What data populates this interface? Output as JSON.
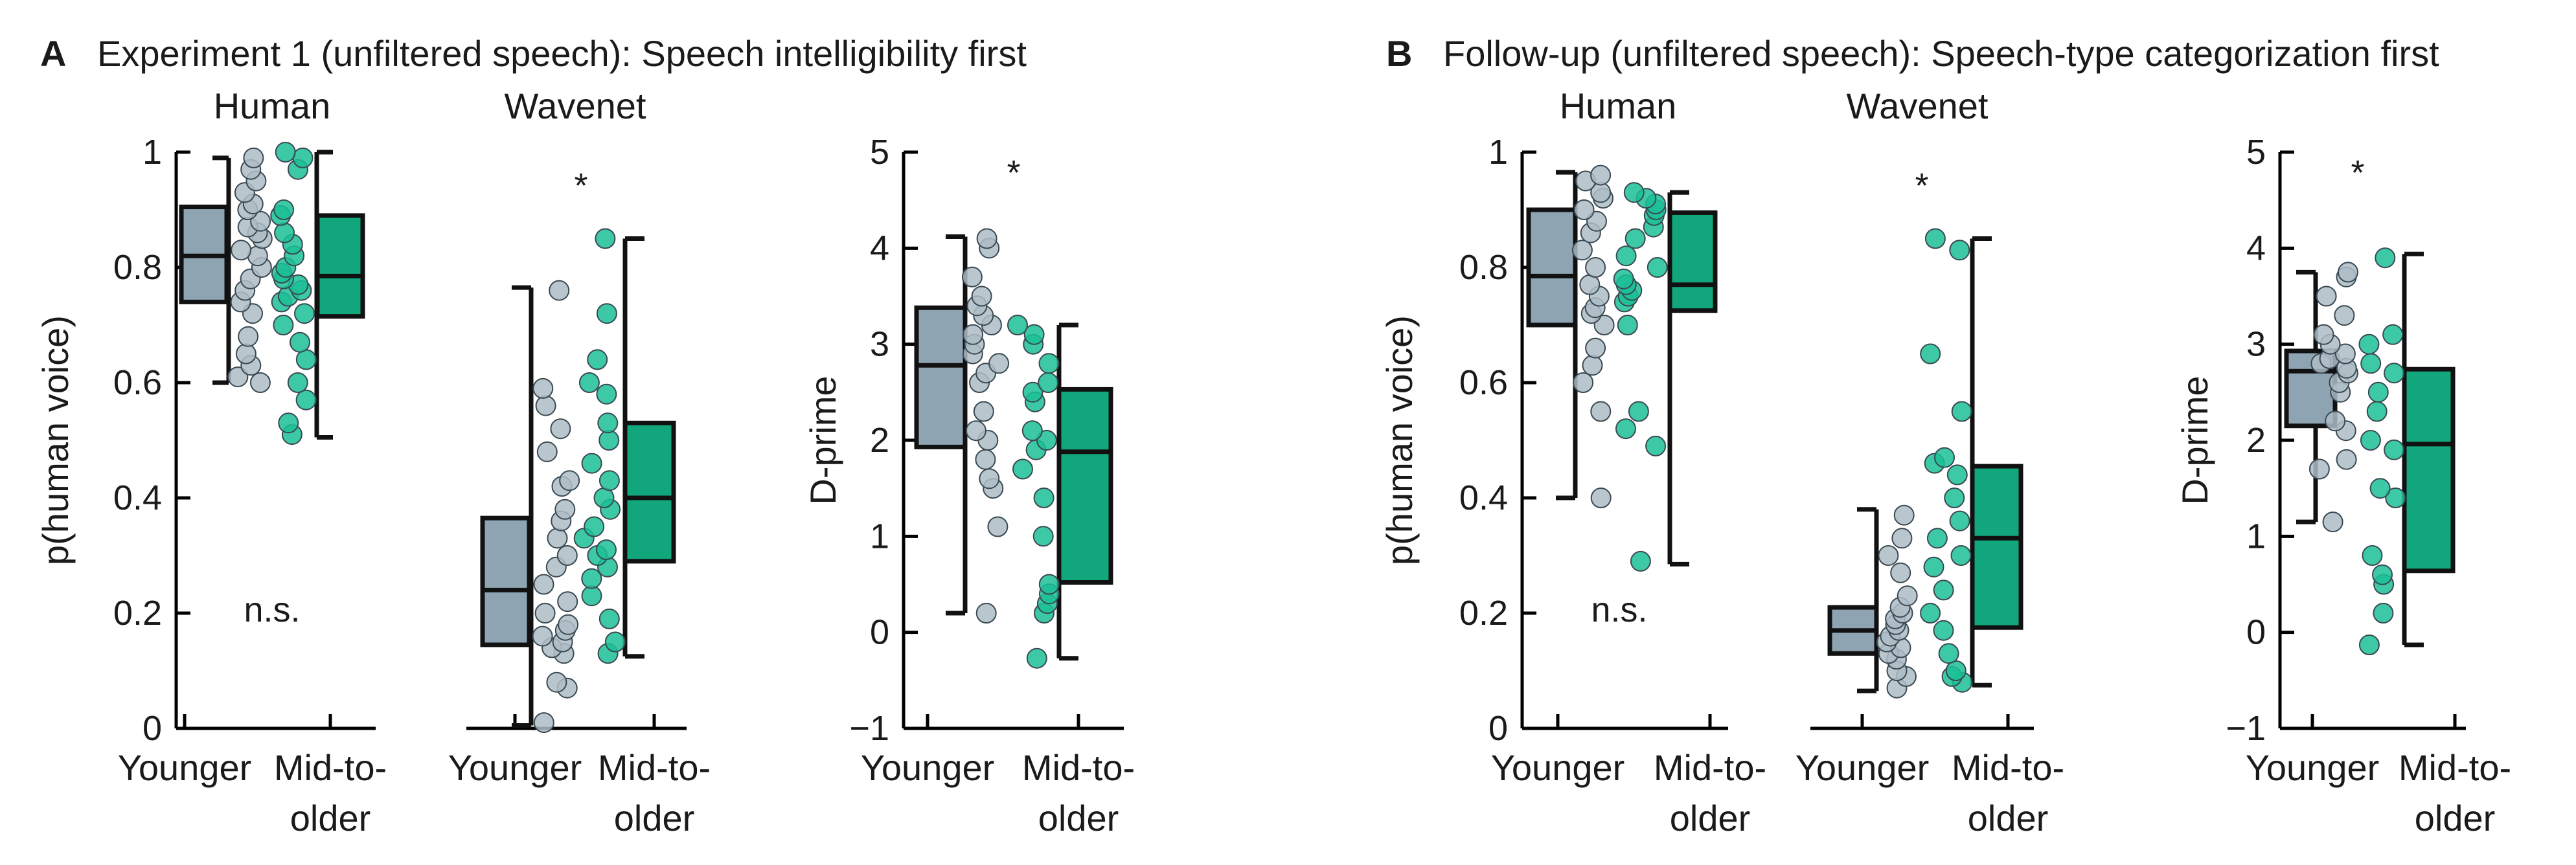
{
  "colors": {
    "younger": "#8ea4b3",
    "older": "#12a67d",
    "younger_dot": "#aebcc6",
    "older_dot": "#1bbf95",
    "box_edge": "#111111"
  },
  "panels": [
    {
      "letter": "A",
      "title": "Experiment 1 (unfiltered speech): Speech intelligibility first",
      "group_titles": [
        "Human",
        "Wavenet"
      ]
    },
    {
      "letter": "B",
      "title": "Follow-up (unfiltered speech): Speech-type categorization first",
      "group_titles": [
        "Human",
        "Wavenet"
      ]
    }
  ],
  "chart_data": [
    {
      "id": "A-human",
      "type": "box",
      "ylabel": "p(human voice)",
      "ylim": [
        0,
        1
      ],
      "yticks": [
        "0",
        "0.2",
        "0.4",
        "0.6",
        "0.8",
        "1"
      ],
      "categories": [
        [
          "Younger"
        ],
        [
          "Mid-to-",
          "older"
        ]
      ],
      "annotation": "n.s.",
      "boxes": [
        {
          "q1": 0.74,
          "median": 0.82,
          "q3": 0.905,
          "wlo": 0.6,
          "whi": 0.99,
          "points": [
            0.6,
            0.61,
            0.63,
            0.65,
            0.68,
            0.72,
            0.74,
            0.76,
            0.78,
            0.8,
            0.82,
            0.83,
            0.85,
            0.86,
            0.87,
            0.88,
            0.9,
            0.91,
            0.93,
            0.95,
            0.97,
            0.99
          ]
        },
        {
          "q1": 0.715,
          "median": 0.785,
          "q3": 0.89,
          "wlo": 0.505,
          "whi": 1.0,
          "points": [
            0.51,
            0.53,
            0.57,
            0.6,
            0.64,
            0.67,
            0.7,
            0.72,
            0.74,
            0.75,
            0.76,
            0.77,
            0.78,
            0.79,
            0.8,
            0.82,
            0.84,
            0.86,
            0.89,
            0.9,
            0.97,
            0.99,
            1.0
          ]
        }
      ]
    },
    {
      "id": "A-wavenet",
      "type": "box",
      "ylim": [
        0,
        1
      ],
      "categories": [
        [
          "Younger"
        ],
        [
          "Mid-to-",
          "older"
        ]
      ],
      "annotation": "*",
      "boxes": [
        {
          "q1": 0.145,
          "median": 0.24,
          "q3": 0.365,
          "wlo": 0.005,
          "whi": 0.765,
          "points": [
            0.01,
            0.07,
            0.08,
            0.13,
            0.14,
            0.15,
            0.16,
            0.17,
            0.18,
            0.2,
            0.22,
            0.25,
            0.28,
            0.3,
            0.33,
            0.36,
            0.38,
            0.42,
            0.43,
            0.48,
            0.52,
            0.56,
            0.59,
            0.76
          ]
        },
        {
          "q1": 0.29,
          "median": 0.4,
          "q3": 0.53,
          "wlo": 0.125,
          "whi": 0.85,
          "points": [
            0.13,
            0.15,
            0.19,
            0.23,
            0.26,
            0.28,
            0.3,
            0.31,
            0.33,
            0.35,
            0.38,
            0.4,
            0.43,
            0.46,
            0.5,
            0.53,
            0.58,
            0.6,
            0.64,
            0.72,
            0.85
          ]
        }
      ]
    },
    {
      "id": "A-dprime",
      "type": "box",
      "ylabel": "D-prime",
      "ylim": [
        -1,
        5
      ],
      "yticks": [
        "−1",
        "0",
        "1",
        "2",
        "3",
        "4",
        "5"
      ],
      "categories": [
        [
          "Younger"
        ],
        [
          "Mid-to-",
          "older"
        ]
      ],
      "annotation": "*",
      "boxes": [
        {
          "q1": 1.93,
          "median": 2.78,
          "q3": 3.38,
          "wlo": 0.2,
          "whi": 4.12,
          "points": [
            0.2,
            1.1,
            1.5,
            1.6,
            1.8,
            2.0,
            2.1,
            2.3,
            2.6,
            2.7,
            2.8,
            2.9,
            3.0,
            3.1,
            3.2,
            3.3,
            3.4,
            3.5,
            3.7,
            4.0,
            4.1
          ]
        },
        {
          "q1": 0.52,
          "median": 1.88,
          "q3": 2.53,
          "wlo": -0.27,
          "whi": 3.2,
          "points": [
            -0.27,
            0.2,
            0.3,
            0.4,
            0.5,
            1.0,
            1.4,
            1.7,
            1.9,
            2.0,
            2.1,
            2.4,
            2.5,
            2.6,
            2.8,
            3.0,
            3.1,
            3.2
          ]
        }
      ]
    },
    {
      "id": "B-human",
      "type": "box",
      "ylabel": "p(human voice)",
      "ylim": [
        0,
        1
      ],
      "yticks": [
        "0",
        "0.2",
        "0.4",
        "0.6",
        "0.8",
        "1"
      ],
      "categories": [
        [
          "Younger"
        ],
        [
          "Mid-to-",
          "older"
        ]
      ],
      "annotation": "n.s.",
      "boxes": [
        {
          "q1": 0.7,
          "median": 0.785,
          "q3": 0.9,
          "wlo": 0.4,
          "whi": 0.965,
          "points": [
            0.4,
            0.55,
            0.6,
            0.63,
            0.66,
            0.7,
            0.72,
            0.73,
            0.75,
            0.77,
            0.8,
            0.83,
            0.86,
            0.88,
            0.9,
            0.92,
            0.93,
            0.95,
            0.96
          ]
        },
        {
          "q1": 0.725,
          "median": 0.77,
          "q3": 0.895,
          "wlo": 0.285,
          "whi": 0.93,
          "points": [
            0.29,
            0.49,
            0.52,
            0.55,
            0.7,
            0.74,
            0.75,
            0.76,
            0.77,
            0.78,
            0.8,
            0.82,
            0.85,
            0.87,
            0.89,
            0.9,
            0.91,
            0.92,
            0.93
          ]
        }
      ]
    },
    {
      "id": "B-wavenet",
      "type": "box",
      "ylim": [
        0,
        1
      ],
      "categories": [
        [
          "Younger"
        ],
        [
          "Mid-to-",
          "older"
        ]
      ],
      "annotation": "*",
      "boxes": [
        {
          "q1": 0.13,
          "median": 0.17,
          "q3": 0.21,
          "wlo": 0.065,
          "whi": 0.38,
          "points": [
            0.07,
            0.09,
            0.1,
            0.12,
            0.13,
            0.14,
            0.15,
            0.16,
            0.17,
            0.18,
            0.19,
            0.2,
            0.21,
            0.23,
            0.27,
            0.3,
            0.33,
            0.37
          ]
        },
        {
          "q1": 0.175,
          "median": 0.33,
          "q3": 0.455,
          "wlo": 0.075,
          "whi": 0.85,
          "points": [
            0.08,
            0.09,
            0.1,
            0.13,
            0.17,
            0.2,
            0.24,
            0.28,
            0.3,
            0.33,
            0.36,
            0.4,
            0.44,
            0.46,
            0.47,
            0.55,
            0.65,
            0.83,
            0.85
          ]
        }
      ]
    },
    {
      "id": "B-dprime",
      "type": "box",
      "ylabel": "D-prime",
      "ylim": [
        -1,
        5
      ],
      "yticks": [
        "−1",
        "0",
        "1",
        "2",
        "3",
        "4",
        "5"
      ],
      "categories": [
        [
          "Younger"
        ],
        [
          "Mid-to-",
          "older"
        ]
      ],
      "annotation": "*",
      "boxes": [
        {
          "q1": 2.15,
          "median": 2.72,
          "q3": 2.93,
          "wlo": 1.15,
          "whi": 3.75,
          "points": [
            1.15,
            1.7,
            1.8,
            2.1,
            2.2,
            2.5,
            2.6,
            2.7,
            2.75,
            2.8,
            2.85,
            2.9,
            3.0,
            3.1,
            3.3,
            3.5,
            3.7,
            3.75
          ]
        },
        {
          "q1": 0.64,
          "median": 1.96,
          "q3": 2.74,
          "wlo": -0.13,
          "whi": 3.94,
          "points": [
            -0.13,
            0.2,
            0.5,
            0.6,
            0.8,
            1.4,
            1.5,
            1.9,
            2.0,
            2.3,
            2.5,
            2.7,
            2.8,
            3.0,
            3.1,
            3.9
          ]
        }
      ]
    }
  ]
}
